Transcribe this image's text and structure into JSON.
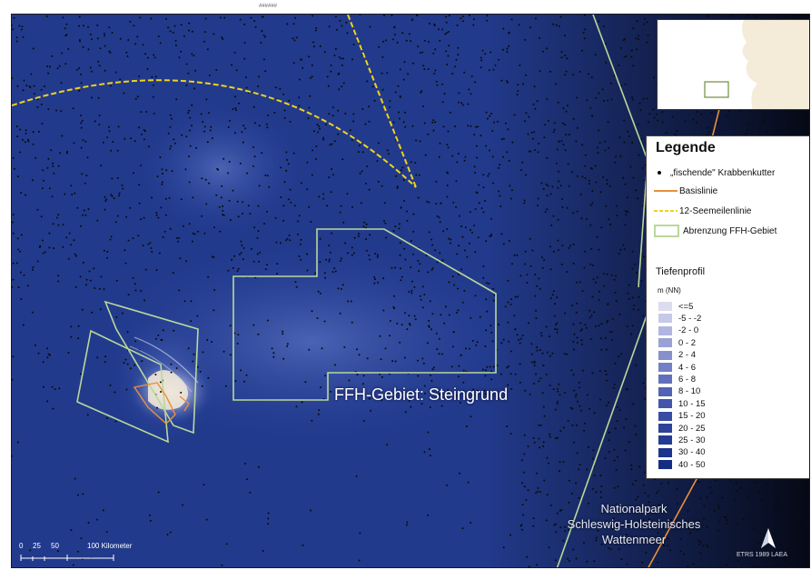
{
  "header": {
    "tick_text": "######"
  },
  "map": {
    "ffh_label": "FFH-Gebiet: Steingrund",
    "nationalpark_label": [
      "Nationalpark",
      "Schleswig-Holsteinisches",
      "Wattenmeer"
    ],
    "crs_label": "ETRS 1989 LAEA",
    "colors": {
      "sea": "#223a8c",
      "ffh_outline": "#b9d89a",
      "baseline": "#e8913a",
      "twelve_mile": "#f0d21c",
      "vessel_points": "#0a0a0a",
      "land": "#f4ecd9"
    },
    "icons": [
      "north-arrow-icon"
    ]
  },
  "scale_bar": {
    "labels": [
      "0",
      "25",
      "50",
      "100 Kilometer"
    ]
  },
  "legend": {
    "title": "Legende",
    "items": [
      {
        "symbol": "point",
        "label": "„fischende\" Krabbenkutter"
      },
      {
        "symbol": "orange-line",
        "label": "Basislinie"
      },
      {
        "symbol": "yellow-dashed-line",
        "label": "12-Seemeilenlinie"
      },
      {
        "symbol": "green-outline",
        "label": "Abrenzung FFH-Gebiet"
      }
    ],
    "depth_title": "Tiefenprofil",
    "depth_unit": "m (NN)",
    "depth_classes": [
      {
        "label": "<=5",
        "color": "#dcdcf0"
      },
      {
        "label": "-5 - -2",
        "color": "#c6c9e8"
      },
      {
        "label": "-2 - 0",
        "color": "#b0b6e0"
      },
      {
        "label": "0 - 2",
        "color": "#9aa2d6"
      },
      {
        "label": "2 - 4",
        "color": "#8590cd"
      },
      {
        "label": "4 - 6",
        "color": "#7380c5"
      },
      {
        "label": "6 - 8",
        "color": "#6270bc"
      },
      {
        "label": "8 - 10",
        "color": "#5262b4"
      },
      {
        "label": "10 - 15",
        "color": "#4456ab"
      },
      {
        "label": "15 - 20",
        "color": "#384ca3"
      },
      {
        "label": "20 - 25",
        "color": "#2d439b"
      },
      {
        "label": "25 - 30",
        "color": "#243b93"
      },
      {
        "label": "30 - 40",
        "color": "#1c348b"
      },
      {
        "label": "40 - 50",
        "color": "#152d83"
      }
    ]
  }
}
